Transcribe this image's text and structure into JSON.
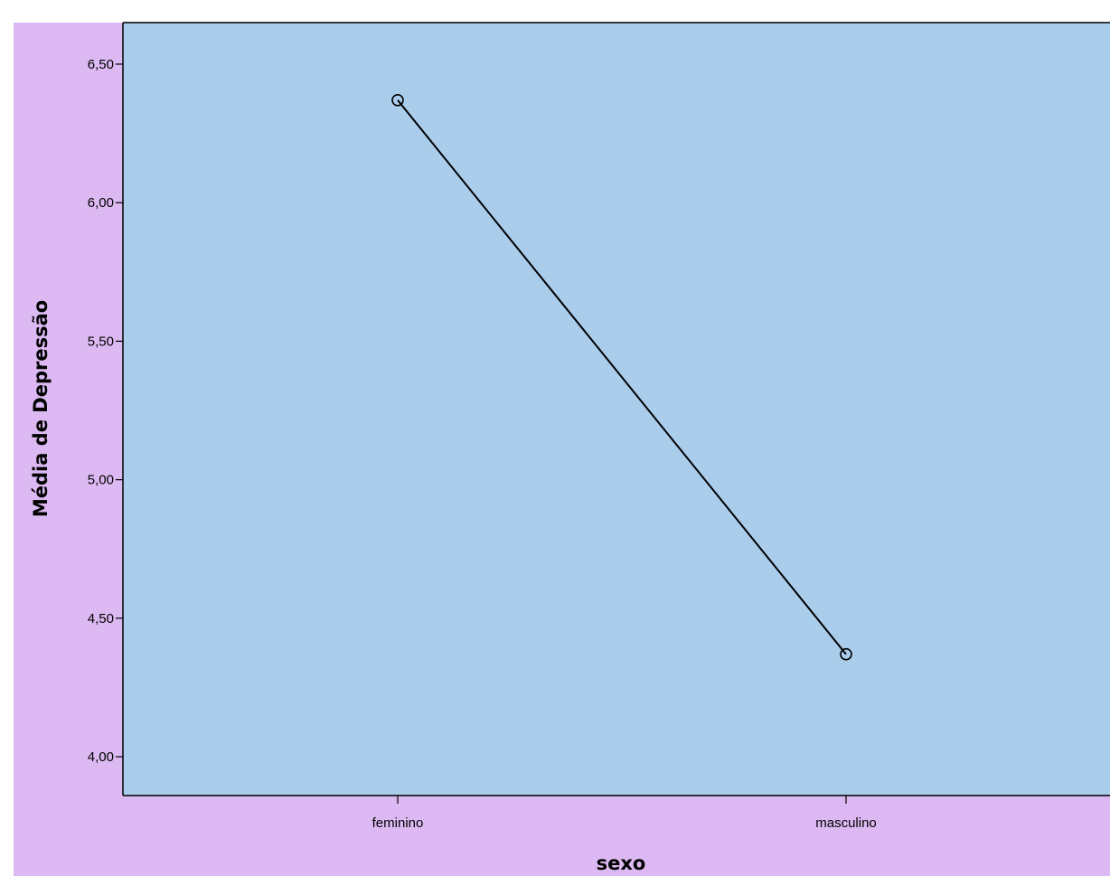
{
  "chart_data": {
    "type": "line",
    "categories": [
      "feminino",
      "masculino"
    ],
    "series": [
      {
        "values": [
          6.37,
          4.37
        ]
      }
    ],
    "xlabel": "sexo",
    "ylabel": "Média de Depressão",
    "ylim": [
      3.86,
      6.65
    ],
    "yticks": [
      4.0,
      4.5,
      5.0,
      5.5,
      6.0,
      6.5
    ],
    "ytick_labels": [
      "4,00",
      "4,50",
      "5,00",
      "5,50",
      "6,00",
      "6,50"
    ],
    "grid": false,
    "colors": {
      "outer_background": "#dcb9f2",
      "plot_background": "#abcdec",
      "line": "#000000",
      "marker": "#000000"
    },
    "marker": "hollow-circle"
  }
}
